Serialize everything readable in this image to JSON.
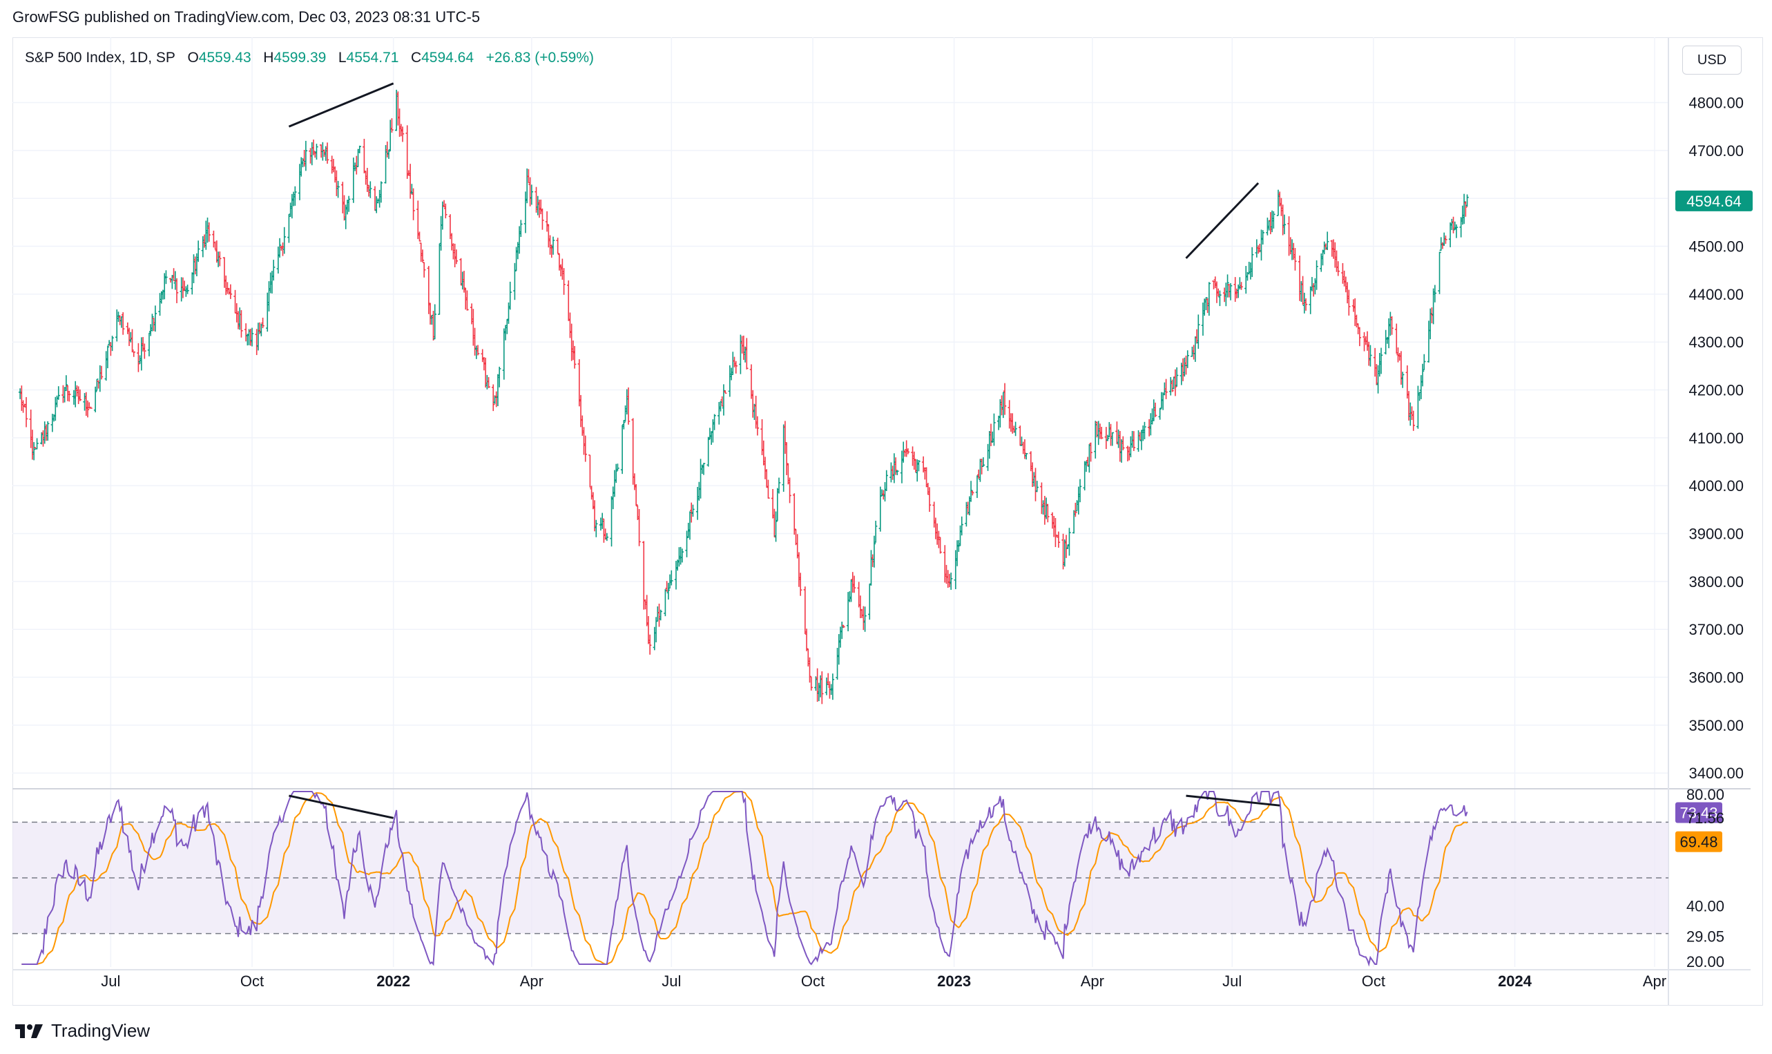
{
  "header": {
    "publisher_line": "GrowFSG published on TradingView.com, Dec 03, 2023 08:31 UTC-5"
  },
  "legend": {
    "symbol": "S&P 500 Index, 1D, SP",
    "open_label": "O",
    "open_value": "4559.43",
    "high_label": "H",
    "high_value": "4599.39",
    "low_label": "L",
    "low_value": "4554.71",
    "close_label": "C",
    "close_value": "4594.64",
    "change": "+26.83 (+0.59%)"
  },
  "currency_button": "USD",
  "footer": {
    "brand": "TradingView"
  },
  "colors": {
    "up": "#089981",
    "down": "#f23645",
    "rsi": "#7e57c2",
    "rsi_ma": "#ff9800",
    "rsi_band": "#ede7f6"
  },
  "chart_data": [
    {
      "type": "ohlc",
      "title": "S&P 500 Index, 1D, SP",
      "x_ticks": [
        "Jul",
        "Oct",
        "2022",
        "Apr",
        "Jul",
        "Oct",
        "2023",
        "Apr",
        "Jul",
        "Oct",
        "2024",
        "Apr"
      ],
      "x_range": [
        "2021-04-28",
        "2024-04-10"
      ],
      "y_ticks": [
        "4800.00",
        "4700.00",
        "4600.00",
        "4500.00",
        "4400.00",
        "4300.00",
        "4200.00",
        "4100.00",
        "4000.00",
        "3900.00",
        "3800.00",
        "3700.00",
        "3600.00",
        "3500.00",
        "3400.00"
      ],
      "ylim": [
        3370,
        4870
      ],
      "last_price_label": "4594.64",
      "close_path": [
        [
          "2021-05-03",
          4190
        ],
        [
          "2021-05-12",
          4063
        ],
        [
          "2021-06-01",
          4205
        ],
        [
          "2021-06-18",
          4166
        ],
        [
          "2021-07-07",
          4358
        ],
        [
          "2021-07-19",
          4258
        ],
        [
          "2021-08-06",
          4436
        ],
        [
          "2021-08-19",
          4405
        ],
        [
          "2021-09-02",
          4537
        ],
        [
          "2021-09-20",
          4358
        ],
        [
          "2021-09-30",
          4307
        ],
        [
          "2021-10-04",
          4300
        ],
        [
          "2021-10-25",
          4566
        ],
        [
          "2021-11-05",
          4697
        ],
        [
          "2021-11-18",
          4705
        ],
        [
          "2021-11-30",
          4567
        ],
        [
          "2021-12-10",
          4712
        ],
        [
          "2021-12-20",
          4568
        ],
        [
          "2022-01-03",
          4797
        ],
        [
          "2022-01-27",
          4327
        ],
        [
          "2022-02-02",
          4589
        ],
        [
          "2022-02-24",
          4289
        ],
        [
          "2022-03-08",
          4171
        ],
        [
          "2022-03-29",
          4632
        ],
        [
          "2022-04-20",
          4459
        ],
        [
          "2022-05-12",
          3930
        ],
        [
          "2022-05-20",
          3901
        ],
        [
          "2022-06-02",
          4177
        ],
        [
          "2022-06-16",
          3667
        ],
        [
          "2022-07-06",
          3845
        ],
        [
          "2022-07-29",
          4130
        ],
        [
          "2022-08-16",
          4305
        ],
        [
          "2022-09-06",
          3908
        ],
        [
          "2022-09-12",
          4110
        ],
        [
          "2022-09-30",
          3586
        ],
        [
          "2022-10-12",
          3577
        ],
        [
          "2022-10-27",
          3807
        ],
        [
          "2022-11-03",
          3720
        ],
        [
          "2022-11-15",
          3991
        ],
        [
          "2022-12-01",
          4076
        ],
        [
          "2022-12-13",
          4019
        ],
        [
          "2022-12-28",
          3783
        ],
        [
          "2023-01-12",
          3983
        ],
        [
          "2023-02-02",
          4179
        ],
        [
          "2023-03-01",
          3951
        ],
        [
          "2023-03-13",
          3855
        ],
        [
          "2023-04-03",
          4124
        ],
        [
          "2023-04-25",
          4071
        ],
        [
          "2023-05-19",
          4191
        ],
        [
          "2023-06-05",
          4273
        ],
        [
          "2023-06-16",
          4409
        ],
        [
          "2023-07-06",
          4411
        ],
        [
          "2023-07-31",
          4588
        ],
        [
          "2023-08-18",
          4369
        ],
        [
          "2023-09-01",
          4515
        ],
        [
          "2023-09-21",
          4330
        ],
        [
          "2023-10-03",
          4229
        ],
        [
          "2023-10-12",
          4349
        ],
        [
          "2023-10-27",
          4117
        ],
        [
          "2023-11-14",
          4495
        ],
        [
          "2023-12-01",
          4594.64
        ]
      ]
    },
    {
      "type": "line",
      "title": "RSI",
      "y_ticks": [
        "80.00",
        "40.00",
        "20.00"
      ],
      "ylim": [
        18,
        82
      ],
      "bands": [
        70,
        50,
        30
      ],
      "value_labels": [
        "73.43",
        "71.56",
        "69.48",
        "29.05"
      ],
      "series": [
        {
          "name": "",
          "color": "#7e57c2",
          "last": 73.43
        },
        {
          "name": "",
          "color": "#ff9800",
          "last": 69.48
        }
      ]
    }
  ]
}
